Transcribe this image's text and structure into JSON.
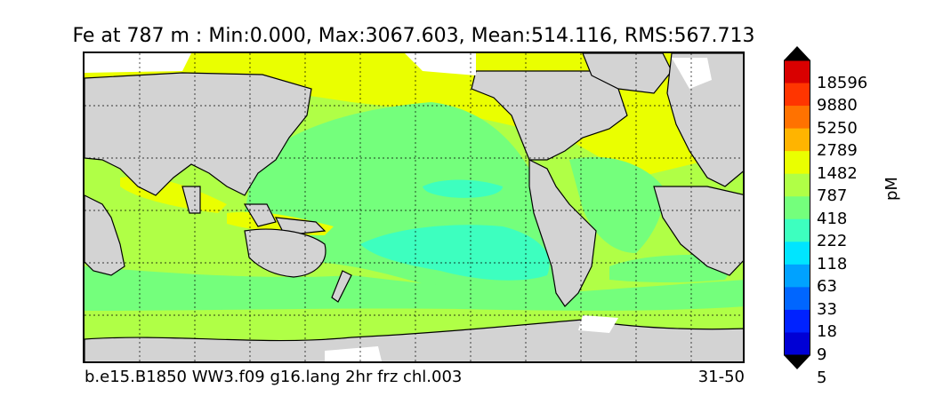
{
  "title": "Fe at 787 m : Min:0.000, Max:3067.603, Mean:514.116, RMS:567.713",
  "caption_left": "b.e15.B1850 WW3.f09 g16.lang 2hr frz chl.003",
  "caption_right": "31-50",
  "colorbar": {
    "unit": "pM",
    "levels": [
      "5",
      "9",
      "18",
      "33",
      "63",
      "118",
      "222",
      "418",
      "787",
      "1482",
      "2789",
      "5250",
      "9880",
      "18596"
    ],
    "colors": [
      "#00008f",
      "#0000d5",
      "#0022ff",
      "#0066ff",
      "#00a2ff",
      "#00e5ff",
      "#3dffbf",
      "#74ff7c",
      "#b0ff46",
      "#eaff00",
      "#ffb400",
      "#ff7200",
      "#ff3500",
      "#d90000",
      "#800000"
    ]
  },
  "map": {
    "land_color": "#d3d3d3",
    "ice_color": "#ffffff"
  }
}
